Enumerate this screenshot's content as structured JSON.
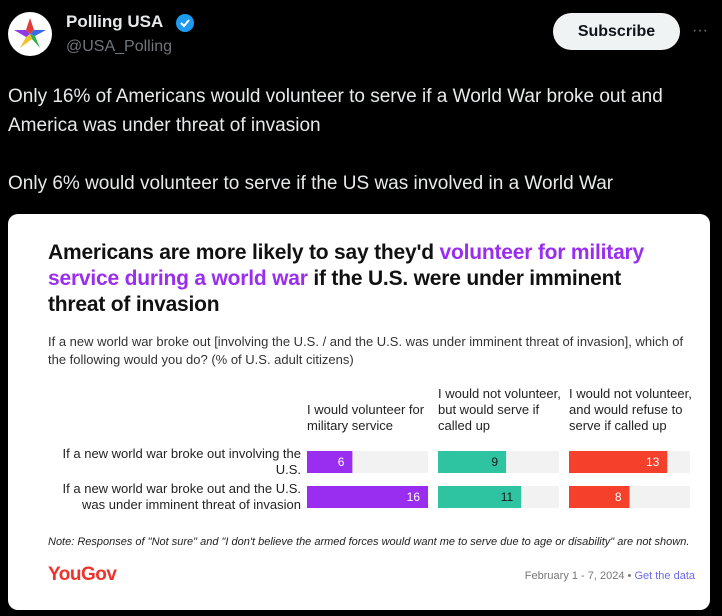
{
  "header": {
    "name": "Polling USA",
    "handle": "@USA_Polling",
    "subscribe": "Subscribe",
    "more": "···"
  },
  "tweet": {
    "paragraphs": [
      "Only 16% of Americans would volunteer to serve if a World War broke out and America was under threat of invasion",
      "Only 6% would volunteer to serve if the US was involved in a World War"
    ]
  },
  "chart_data": {
    "type": "bar",
    "title_parts": [
      {
        "text": "Americans are more likely to say they'd ",
        "highlight": false
      },
      {
        "text": "volunteer for military service during a world war",
        "highlight": true
      },
      {
        "text": " if the U.S. were under imminent threat of invasion",
        "highlight": false
      }
    ],
    "highlight_color": "#9a2ef0",
    "subtitle": "If a new world war broke out [involving the U.S. / and the U.S. was under imminent threat of invasion], which of the following would you do? (% of U.S. adult citizens)",
    "categories": [
      "If a new world war broke out involving the U.S.",
      "If a new world war broke out and the U.S. was under imminent threat of invasion"
    ],
    "series": [
      {
        "name": "I would volunteer for military service",
        "color": "#9a2ef0",
        "values": [
          6,
          16
        ]
      },
      {
        "name": "I would not volunteer, but would serve if called up",
        "color": "#2ec4a2",
        "values": [
          9,
          11
        ]
      },
      {
        "name": "I would not volunteer, and would refuse to serve if called up",
        "color": "#f5402c",
        "values": [
          13,
          8
        ]
      }
    ],
    "xlim": [
      0,
      16
    ],
    "note": "Note: Responses of \"Not sure\" and \"I don't believe the armed forces would want me to serve due to age or disability\" are not shown.",
    "source": "YouGov",
    "date": "February 1 - 7, 2024",
    "separator": "•",
    "link": "Get the data"
  }
}
